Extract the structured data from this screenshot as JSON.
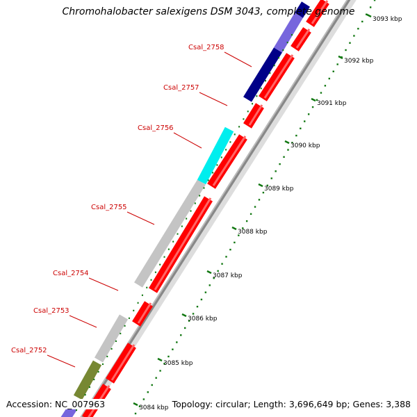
{
  "title": "Chromohalobacter salexigens DSM 3043, complete genome",
  "accession": "Accession: NC_007963",
  "topology": "Topology: circular; Length: 3,696,649 bp; Genes: 3,388",
  "colors": {
    "cds_forward": "#ff0000",
    "backbone": "#999999",
    "tick": "#117711",
    "label": "#cc0000",
    "genes": [
      "#7766dd",
      "#000088",
      "#00eeee",
      "#c4c4c4",
      "#778833"
    ]
  },
  "scale": {
    "unit": "kbp",
    "ticks": [
      "3084 kbp",
      "3085 kbp",
      "3086 kbp",
      "3087 kbp",
      "3088 kbp",
      "3089 kbp",
      "3090 kbp",
      "3091 kbp",
      "3092 kbp",
      "3093 kbp"
    ]
  },
  "gene_labels": [
    "Csal_2752",
    "Csal_2753",
    "Csal_2754",
    "Csal_2755",
    "Csal_2756",
    "Csal_2757",
    "Csal_2758"
  ]
}
